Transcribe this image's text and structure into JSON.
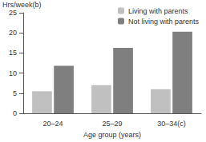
{
  "chart_data": {
    "type": "bar",
    "y_label": "Hrs/week(b)",
    "x_label": "Age group (years)",
    "categories": [
      "20–24",
      "25–29",
      "30–34(c)"
    ],
    "series": [
      {
        "name": "Living with parents",
        "color": "#c0c0c0",
        "values": [
          5.5,
          7.0,
          6.0
        ]
      },
      {
        "name": "Not living with parents",
        "color": "#7f7f7f",
        "values": [
          11.8,
          16.3,
          20.3
        ]
      }
    ],
    "ylim": [
      0,
      25
    ],
    "yticks": [
      0,
      5,
      10,
      15,
      20,
      25
    ],
    "grid": false,
    "legend": "top-right"
  }
}
